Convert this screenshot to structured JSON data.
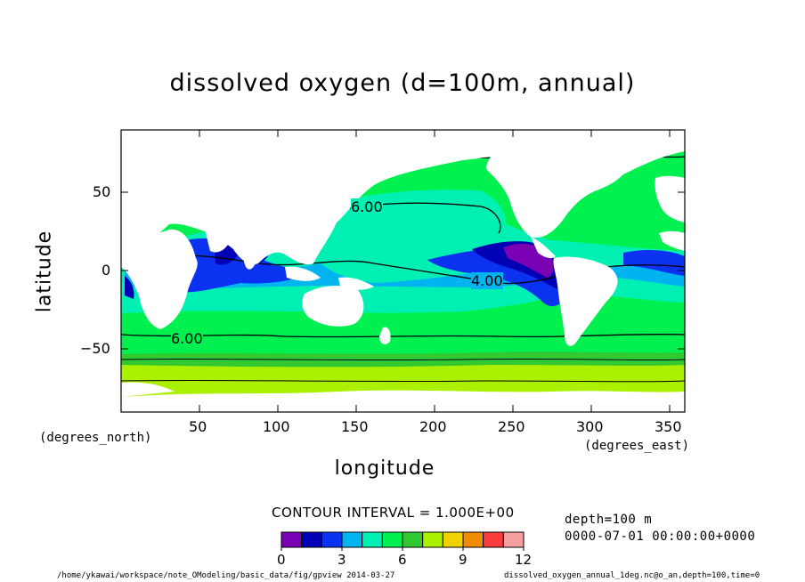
{
  "title": "dissolved oxygen (d=100m, annual)",
  "axes": {
    "ylabel": "latitude",
    "xlabel": "longitude",
    "y_unit": "(degrees_north)",
    "x_unit": "(degrees_east)",
    "x_ticks": [
      "50",
      "100",
      "150",
      "200",
      "250",
      "300",
      "350"
    ],
    "y_ticks": [
      "50",
      "0",
      "−50"
    ],
    "xlim": [
      0,
      360
    ],
    "ylim": [
      -90,
      90
    ]
  },
  "contour_labels": [
    "6.00",
    "4.00",
    "6.00"
  ],
  "colorbar": {
    "title": "CONTOUR INTERVAL = 1.000E+00",
    "tick_labels": [
      "0",
      "3",
      "6",
      "9",
      "12"
    ],
    "colors": [
      "#7a00b4",
      "#0000b4",
      "#0a32f0",
      "#00b4f0",
      "#00f0b4",
      "#00f050",
      "#32c832",
      "#aaf000",
      "#f0d200",
      "#f08c00",
      "#fa3c3c",
      "#f5a0a0"
    ]
  },
  "info": {
    "depth": "depth=100 m",
    "time": "0000-07-01 00:00:00+0000"
  },
  "footer": {
    "left": "/home/ykawai/workspace/note_OModeling/basic_data/fig/gpview  2014-03-27",
    "right": "dissolved_oxygen_annual_1deg.nc@o_an,depth=100,time=0"
  },
  "map_colors": {
    "land": "#ffffff",
    "c2": "#0000b4",
    "c3": "#0a32f0",
    "c4": "#00b4f0",
    "c5": "#00f0b4",
    "c6": "#00f050",
    "c7": "#32c832",
    "c8": "#aaf000",
    "c1": "#7a00b4"
  }
}
